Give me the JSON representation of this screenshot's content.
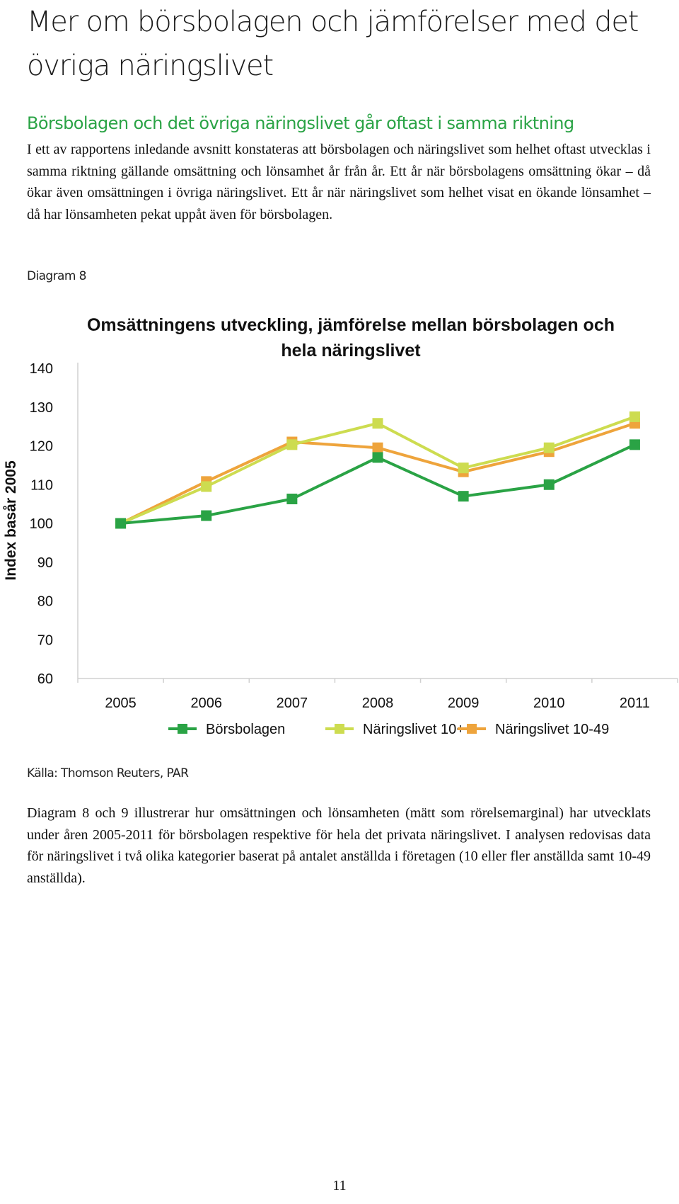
{
  "header": {
    "title": "Mer om börsbolagen och jämförelser med det övriga näringslivet",
    "section_heading": "Börsbolagen och det övriga näringslivet går oftast i samma riktning"
  },
  "intro_paragraph": "I ett av rapportens inledande avsnitt konstateras att börsbolagen och näringslivet som helhet oftast utvecklas i samma riktning gällande omsättning och lönsamhet år från år. Ett år när börsbolagens omsättning ökar – då ökar även omsättningen i övriga näringslivet. Ett år när näringslivet som helhet visat en ökande lönsamhet – då har lönsamheten pekat uppåt även för börsbolagen.",
  "diagram_label": "Diagram 8",
  "source_label": "Källa: Thomson Reuters, PAR",
  "after_paragraph": "Diagram 8 och 9 illustrerar hur omsättningen och lönsamheten (mätt som rörelsemarginal) har utvecklats under åren 2005-2011 för börsbolagen respektive för hela det privata näringslivet. I analysen redovisas data för näringslivet i två olika kategorier baserat på antalet anställda i företagen (10 eller fler anställda samt 10-49 anställda).",
  "page_number": "11",
  "chart_data": {
    "type": "line",
    "title_lines": [
      "Omsättningens utveckling, jämförelse mellan börsbolagen och",
      "hela näringslivet"
    ],
    "ylabel": "Index basår 2005",
    "xlabel": "",
    "ylim": [
      60,
      140
    ],
    "yticks": [
      "60",
      "70",
      "80",
      "90",
      "100",
      "110",
      "120",
      "130",
      "140"
    ],
    "categories": [
      "2005",
      "2006",
      "2007",
      "2008",
      "2009",
      "2010",
      "2011"
    ],
    "legend_position": "bottom",
    "series": [
      {
        "name": "Börsbolagen",
        "color": "#2aa345",
        "values": [
          100,
          102,
          106.3,
          117,
          107,
          110,
          120.3
        ]
      },
      {
        "name": "Näringslivet 10+",
        "color": "#cddc50",
        "values": [
          100,
          109.5,
          120.3,
          125.8,
          114.3,
          119.5,
          127.5
        ]
      },
      {
        "name": "Näringslivet 10-49",
        "color": "#eea43c",
        "values": [
          100,
          110.8,
          121,
          119.5,
          113.3,
          118.5,
          125.8
        ]
      }
    ]
  }
}
